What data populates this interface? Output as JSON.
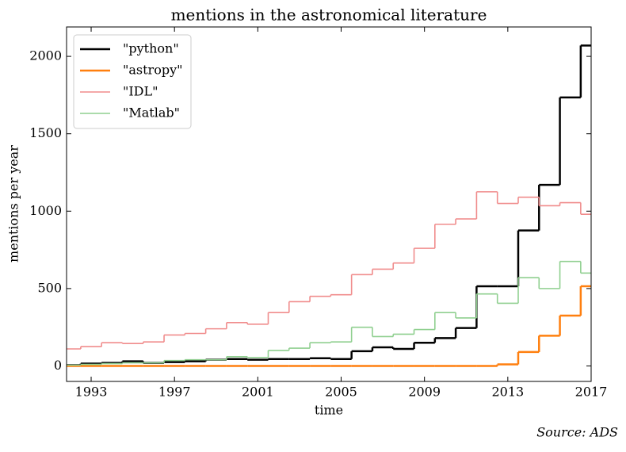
{
  "chart_data": {
    "type": "step",
    "title": "mentions in the astronomical literature",
    "xlabel": "time",
    "ylabel": "mentions per year",
    "annotation": "Source: ADS",
    "x": [
      1992,
      1993,
      1994,
      1995,
      1996,
      1997,
      1998,
      1999,
      2000,
      2001,
      2002,
      2003,
      2004,
      2005,
      2006,
      2007,
      2008,
      2009,
      2010,
      2011,
      2012,
      2013,
      2014,
      2015,
      2016,
      2017
    ],
    "series": [
      {
        "name": "\"python\"",
        "color": "#000000",
        "width": 2.5,
        "values": [
          5,
          15,
          20,
          30,
          20,
          25,
          30,
          40,
          45,
          40,
          45,
          45,
          50,
          45,
          95,
          120,
          110,
          150,
          180,
          245,
          515,
          515,
          875,
          1170,
          1735,
          2070
        ]
      },
      {
        "name": "\"astropy\"",
        "color": "#ff7f0e",
        "width": 2.5,
        "values": [
          0,
          0,
          0,
          0,
          0,
          0,
          0,
          0,
          0,
          0,
          0,
          0,
          0,
          0,
          0,
          0,
          0,
          0,
          0,
          0,
          0,
          10,
          90,
          195,
          325,
          515
        ]
      },
      {
        "name": "\"IDL\"",
        "color": "#f08c8c",
        "width": 1.6,
        "values": [
          110,
          125,
          150,
          145,
          155,
          200,
          210,
          240,
          280,
          270,
          345,
          415,
          450,
          460,
          590,
          625,
          665,
          760,
          915,
          950,
          1125,
          1050,
          1090,
          1035,
          1055,
          980
        ]
      },
      {
        "name": "\"Matlab\"",
        "color": "#8fcf8f",
        "width": 1.6,
        "values": [
          5,
          10,
          15,
          20,
          20,
          35,
          40,
          40,
          60,
          55,
          100,
          115,
          150,
          155,
          250,
          190,
          205,
          235,
          345,
          310,
          465,
          405,
          570,
          500,
          675,
          600
        ]
      }
    ],
    "xlim": [
      1991.82,
      2017
    ],
    "ylim": [
      -100,
      2190
    ],
    "xticks": [
      1993,
      1997,
      2001,
      2005,
      2009,
      2013,
      2017
    ],
    "yticks": [
      0,
      500,
      1000,
      1500,
      2000
    ],
    "legend": "upper left"
  }
}
